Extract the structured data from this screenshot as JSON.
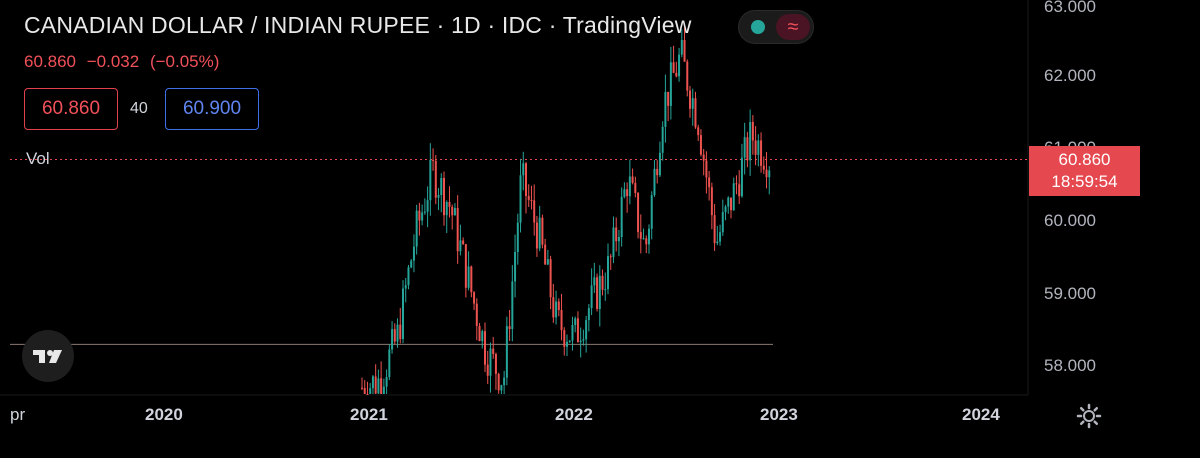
{
  "header": {
    "title": "CANADIAN DOLLAR / INDIAN RUPEE · 1D · IDC · TradingView",
    "last": "60.860",
    "change": "−0.032",
    "change_pct": "(−0.05%)"
  },
  "quote_boxes": {
    "bid": "60.860",
    "spread": "40",
    "ask": "60.900"
  },
  "volume_label": "Vol",
  "price_axis": {
    "labels": [
      "63.000",
      "62.000",
      "61.000",
      "60.000",
      "59.000",
      "58.000"
    ],
    "current_price": "60.860",
    "countdown": "18:59:54"
  },
  "time_axis": {
    "labels": [
      "pr",
      "2020",
      "2021",
      "2022",
      "2023",
      "2024"
    ]
  },
  "icons": {
    "logo": "tradingview-logo-icon",
    "settings": "gear-icon",
    "toggle": "wave-toggle-icon"
  },
  "colors": {
    "up": "#26a69a",
    "down": "#ef5350",
    "background": "#000000",
    "price_line": "#e5484f",
    "ask_border": "#3e6fe8"
  },
  "chart_data": {
    "type": "candlestick",
    "symbol": "CADINR",
    "interval": "1D",
    "ylim": [
      57.6,
      63.0
    ],
    "reference_line": 58.3,
    "last_price": 60.86,
    "x": [
      "2021-01",
      "2021-02",
      "2021-03",
      "2021-04",
      "2021-05",
      "2021-06",
      "2021-07",
      "2021-08",
      "2021-09",
      "2021-10",
      "2021-11",
      "2021-12",
      "2022-01",
      "2022-02",
      "2022-03",
      "2022-04",
      "2022-05",
      "2022-06",
      "2022-07",
      "2022-08",
      "2022-09",
      "2022-10",
      "2022-11",
      "2022-12"
    ],
    "close": [
      57.7,
      57.8,
      58.4,
      59.8,
      60.7,
      60.2,
      59.2,
      58.2,
      57.8,
      60.6,
      59.8,
      58.6,
      58.4,
      58.9,
      59.4,
      60.6,
      59.6,
      61.6,
      62.3,
      61.4,
      59.7,
      60.4,
      61.2,
      60.86
    ]
  }
}
